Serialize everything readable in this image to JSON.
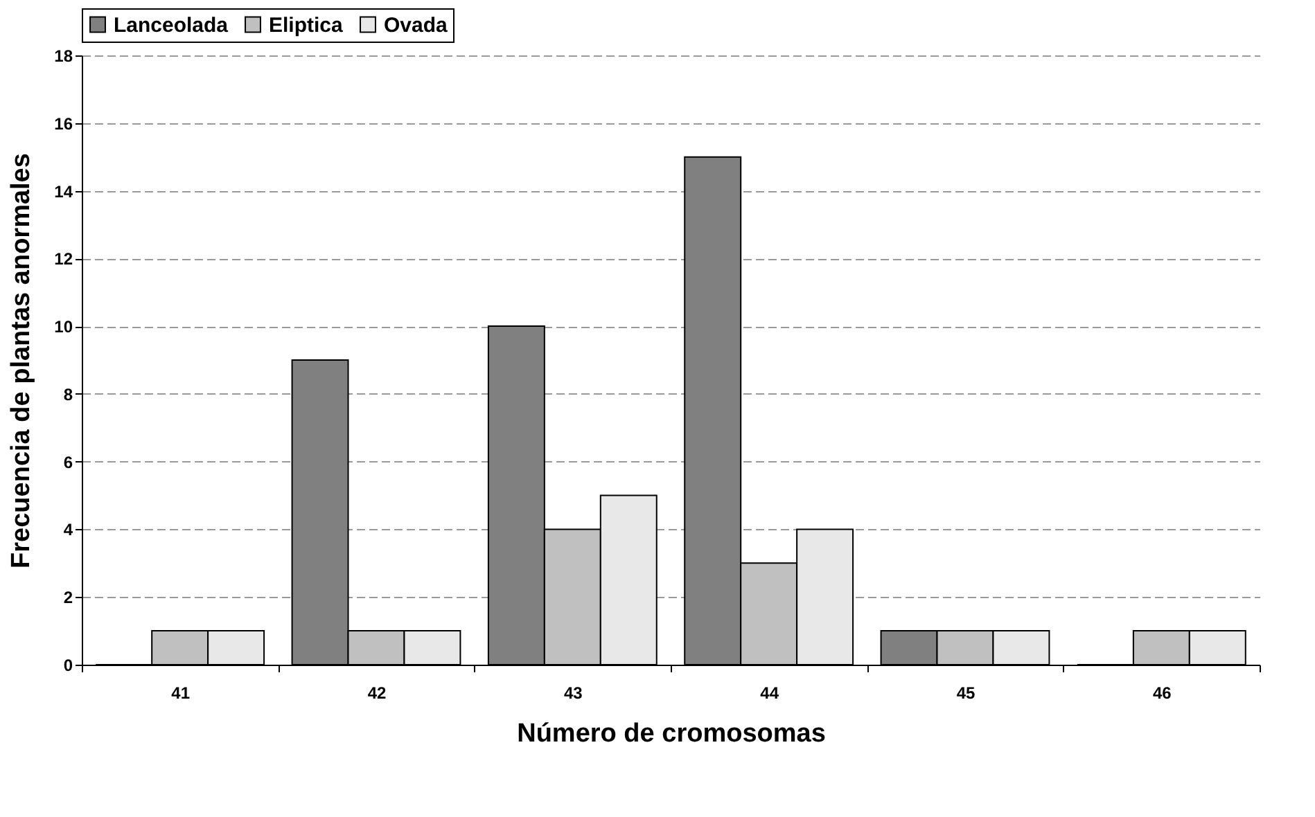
{
  "chart_data": {
    "type": "bar",
    "xlabel": "Número de cromosomas",
    "ylabel": "Frecuencia de plantas anormales",
    "categories": [
      "41",
      "42",
      "43",
      "44",
      "45",
      "46"
    ],
    "series": [
      {
        "name": "Lanceolada",
        "color": "#808080",
        "values": [
          0,
          9,
          10,
          15,
          1,
          0
        ]
      },
      {
        "name": "Eliptica",
        "color": "#c0c0c0",
        "values": [
          1,
          1,
          4,
          3,
          1,
          1
        ]
      },
      {
        "name": "Ovada",
        "color": "#e8e8e8",
        "values": [
          1,
          1,
          5,
          4,
          1,
          1
        ]
      }
    ],
    "ylim": [
      0,
      18
    ],
    "yticks": [
      0,
      2,
      4,
      6,
      8,
      10,
      12,
      14,
      16,
      18
    ],
    "grid": "y",
    "legend": "top"
  }
}
